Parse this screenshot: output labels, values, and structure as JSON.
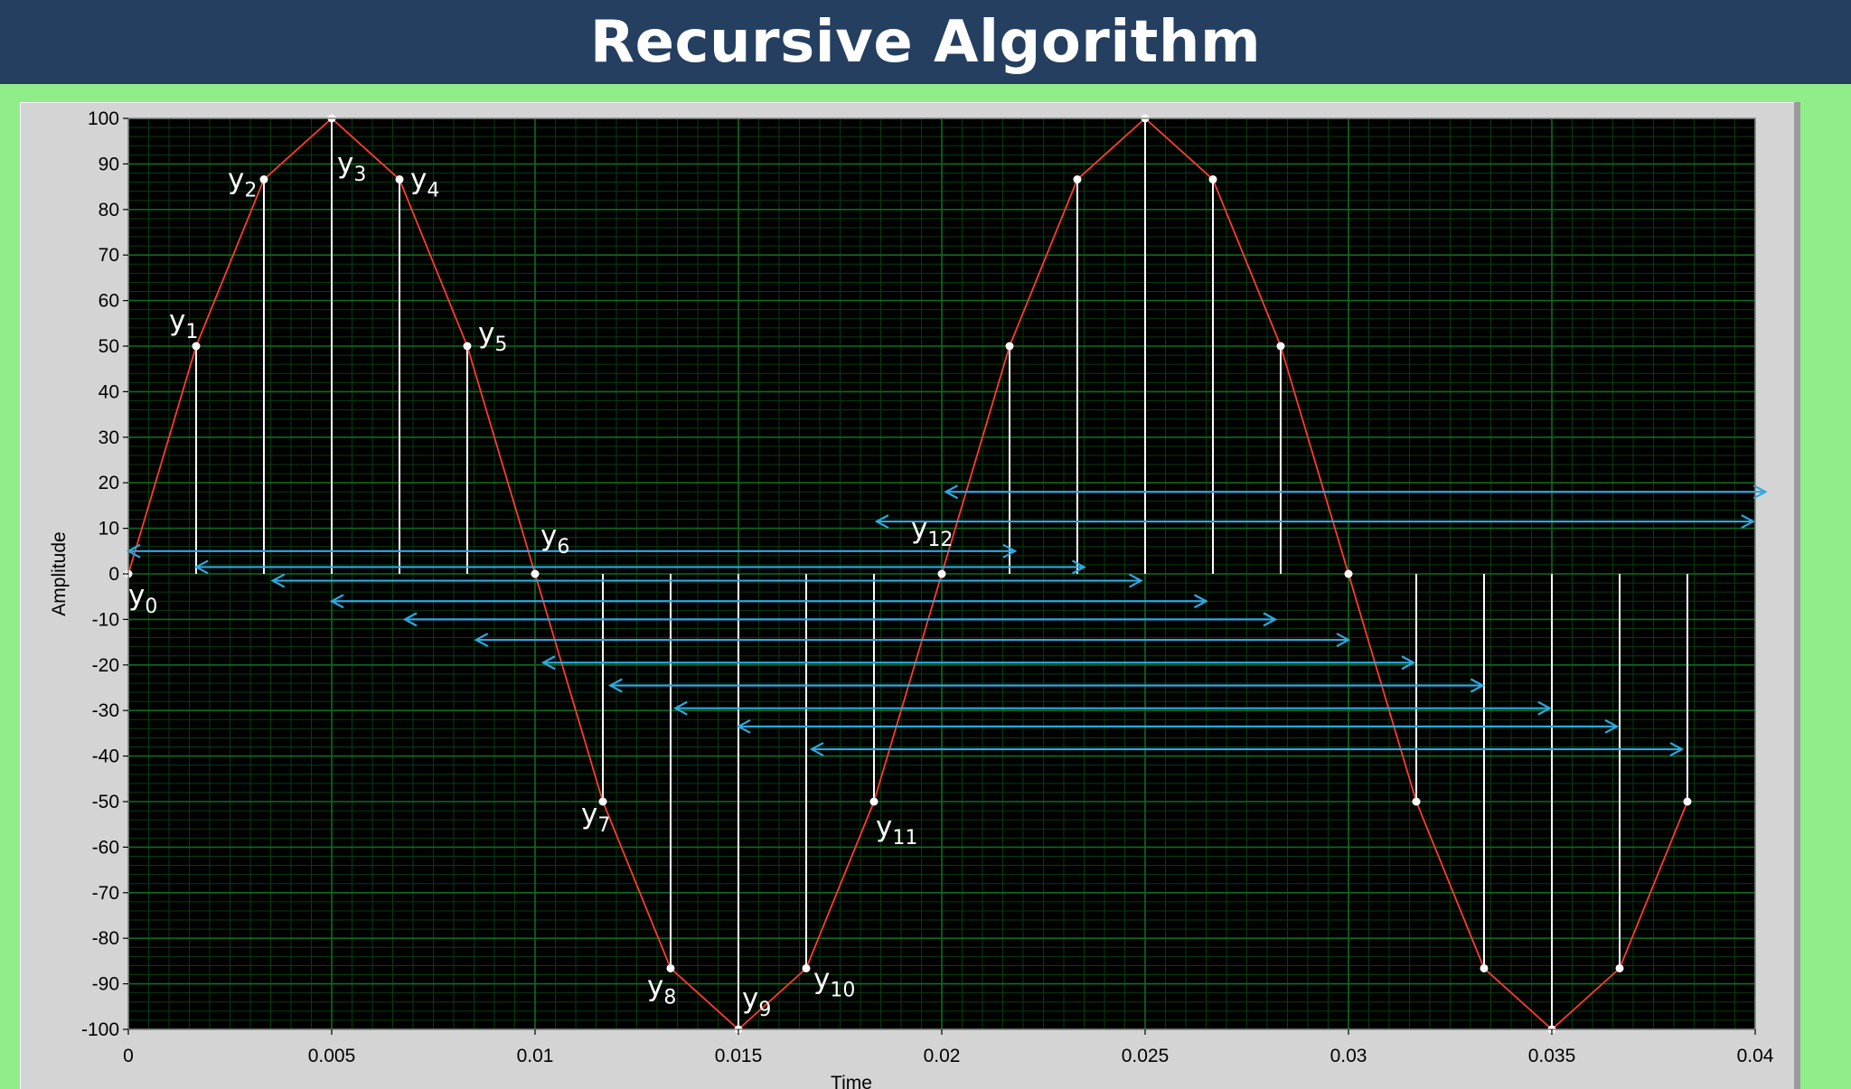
{
  "header": {
    "title": "Recursive Algorithm"
  },
  "colors": {
    "header_bg": "#243f60",
    "page_bg": "#90ee88",
    "plot_bg": "#000000",
    "major_grid": "#0f6b1c",
    "minor_grid": "#063d0e",
    "signal_line": "#ff3b30",
    "stem": "#ffffff",
    "arrow": "#2fa8e0"
  },
  "chart_data": {
    "type": "line",
    "xlabel": "Time",
    "ylabel": "Amplitude",
    "xlim": [
      0,
      0.04
    ],
    "ylim": [
      -100,
      100
    ],
    "grid": true,
    "x_ticks": [
      "0",
      "0.005",
      "0.01",
      "0.015",
      "0.02",
      "0.025",
      "0.03",
      "0.035",
      "0.04"
    ],
    "y_ticks": [
      "100",
      "90",
      "80",
      "70",
      "60",
      "50",
      "40",
      "30",
      "20",
      "10",
      "0",
      "-10",
      "-20",
      "-30",
      "-40",
      "-50",
      "-60",
      "-70",
      "-80",
      "-90",
      "-100"
    ],
    "series": [
      {
        "x": [
          0,
          0.001667,
          0.003333,
          0.005,
          0.006667,
          0.008333,
          0.01,
          0.011667,
          0.013333,
          0.015,
          0.016667,
          0.018333,
          0.02,
          0.021667,
          0.023333,
          0.025,
          0.026667,
          0.028333,
          0.03,
          0.031667,
          0.033333,
          0.035,
          0.036667,
          0.038333
        ],
        "y": [
          0,
          50,
          86.6,
          100,
          86.6,
          50,
          0,
          -50,
          -86.6,
          -100,
          -86.6,
          -50,
          0,
          50,
          86.6,
          100,
          86.6,
          50,
          0,
          -50,
          -86.6,
          -100,
          -86.6,
          -50
        ]
      }
    ],
    "point_labels": [
      {
        "text": "y",
        "sub": "0",
        "index": 0
      },
      {
        "text": "y",
        "sub": "1",
        "index": 1
      },
      {
        "text": "y",
        "sub": "2",
        "index": 2
      },
      {
        "text": "y",
        "sub": "3",
        "index": 3
      },
      {
        "text": "y",
        "sub": "4",
        "index": 4
      },
      {
        "text": "y",
        "sub": "5",
        "index": 5
      },
      {
        "text": "y",
        "sub": "6",
        "index": 6
      },
      {
        "text": "y",
        "sub": "7",
        "index": 7
      },
      {
        "text": "y",
        "sub": "8",
        "index": 8
      },
      {
        "text": "y",
        "sub": "9",
        "index": 9
      },
      {
        "text": "y",
        "sub": "10",
        "index": 10
      },
      {
        "text": "y",
        "sub": "11",
        "index": 11
      },
      {
        "text": "y",
        "sub": "12",
        "index": 12
      }
    ],
    "arrows": [
      {
        "from": 0,
        "to": 0.0218,
        "y": 5
      },
      {
        "from": 0.00167,
        "to": 0.0235,
        "y": 1.5
      },
      {
        "from": 0.00355,
        "to": 0.0249,
        "y": -1.5
      },
      {
        "from": 0.005,
        "to": 0.0265,
        "y": -6
      },
      {
        "from": 0.0068,
        "to": 0.0282,
        "y": -10
      },
      {
        "from": 0.00855,
        "to": 0.03,
        "y": -14.5
      },
      {
        "from": 0.0102,
        "to": 0.0316,
        "y": -19.5
      },
      {
        "from": 0.01185,
        "to": 0.0333,
        "y": -24.5
      },
      {
        "from": 0.01345,
        "to": 0.03495,
        "y": -29.5
      },
      {
        "from": 0.015,
        "to": 0.0366,
        "y": -33.5
      },
      {
        "from": 0.0168,
        "to": 0.0382,
        "y": -38.5
      },
      {
        "from": 0.0184,
        "to": 0.03995,
        "y": 11.5
      },
      {
        "from": 0.0201,
        "to": 0.04025,
        "y": 18
      }
    ]
  }
}
